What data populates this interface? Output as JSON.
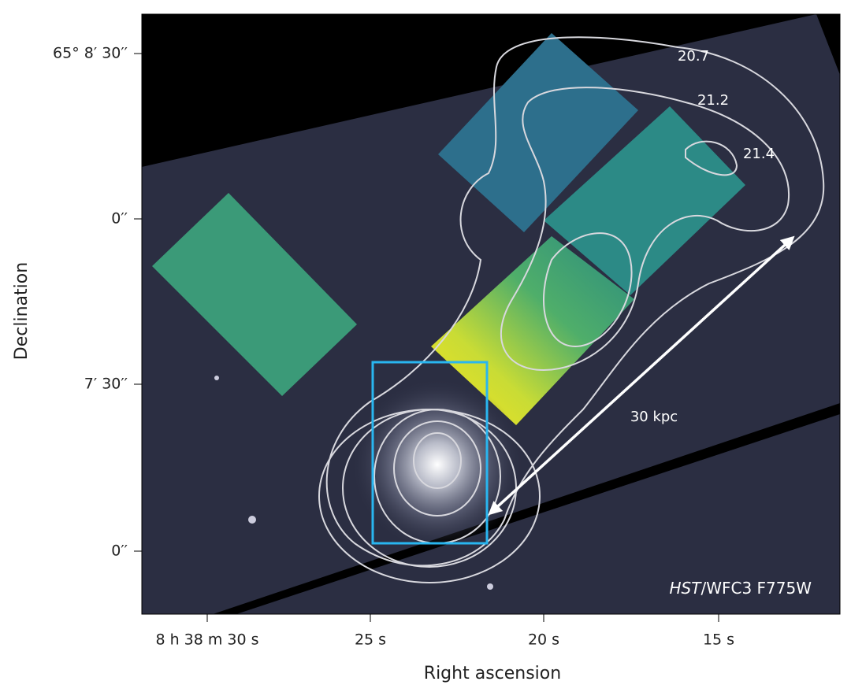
{
  "figure": {
    "x_axis": {
      "label": "Right ascension",
      "ticks": [
        "8 h 38 m 30 s",
        "25 s",
        "20 s",
        "15 s"
      ]
    },
    "y_axis": {
      "label": "Declination",
      "ticks": [
        "65° 8′ 30′′",
        "0′′",
        "7′ 30′′",
        "0′′"
      ]
    },
    "contour_labels": [
      20.7,
      21.2,
      21.4
    ],
    "scale_bar": "30 kpc",
    "instrument": {
      "italic": "HST",
      "rest": "/WFC3 F775W"
    }
  }
}
